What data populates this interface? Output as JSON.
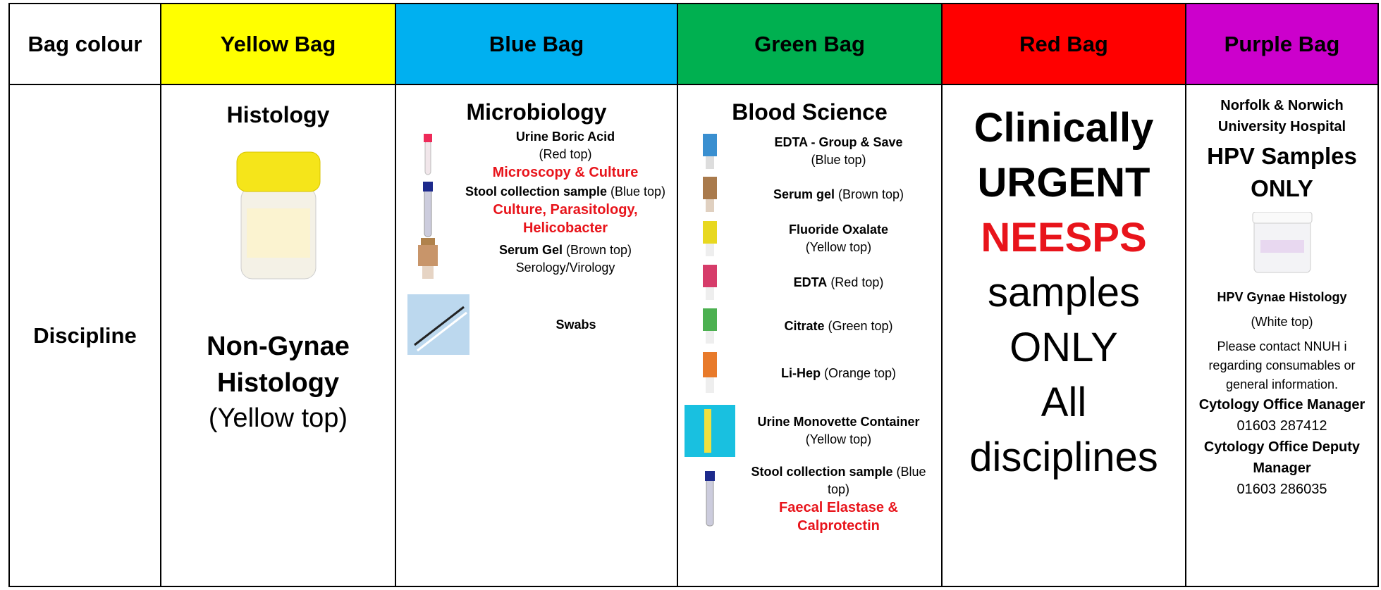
{
  "table": {
    "header": [
      "Bag colour",
      "Yellow Bag",
      "Blue Bag",
      "Green Bag",
      "Red Bag",
      "Purple Bag"
    ],
    "row_label": "Discipline",
    "yellow": {
      "title": "Histology",
      "subtitle": "Non-Gynae Histology",
      "note": "(Yellow top)"
    },
    "blue": {
      "title": "Microbiology",
      "items": [
        {
          "name": "Urine Boric Acid",
          "detail": "(Red top)",
          "test": "Microscopy & Culture"
        },
        {
          "name": "Stool collection sample",
          "detail": "(Blue top)",
          "test": "Culture, Parasitology, Helicobacter"
        },
        {
          "name": "Serum Gel",
          "detail": "(Brown top)",
          "note": "Serology/Virology"
        },
        {
          "name": "Swabs"
        }
      ]
    },
    "green": {
      "title": "Blood Science",
      "items": [
        {
          "name": "EDTA - Group & Save",
          "detail": "(Blue top)"
        },
        {
          "name": "Serum gel",
          "detail": "(Brown top)"
        },
        {
          "name": "Fluoride Oxalate",
          "detail": "(Yellow top)"
        },
        {
          "name": "EDTA",
          "detail": "(Red top)"
        },
        {
          "name": "Citrate",
          "detail": "(Green top)"
        },
        {
          "name": "Li-Hep",
          "detail": "(Orange top)"
        },
        {
          "name": "Urine Monovette Container",
          "detail": "(Yellow top)"
        },
        {
          "name": "Stool collection sample",
          "detail": "(Blue top)",
          "test": "Faecal Elastase & Calprotectin"
        }
      ]
    },
    "red": {
      "line1": "Clinically",
      "line2": "URGENT",
      "line3": "NEESPS",
      "line4": "samples ONLY",
      "line5": "All disciplines"
    },
    "purple": {
      "hospital": "Norfolk & Norwich University Hospital",
      "title": "HPV Samples ONLY",
      "item": "HPV Gynae Histology",
      "detail": "(White top)",
      "contact": "Please contact NNUH i regarding consumables or general information.",
      "role1": "Cytology Office Manager",
      "phone1": "01603 287412",
      "role2": "Cytology Office Deputy Manager",
      "phone2": "01603 286035"
    }
  }
}
